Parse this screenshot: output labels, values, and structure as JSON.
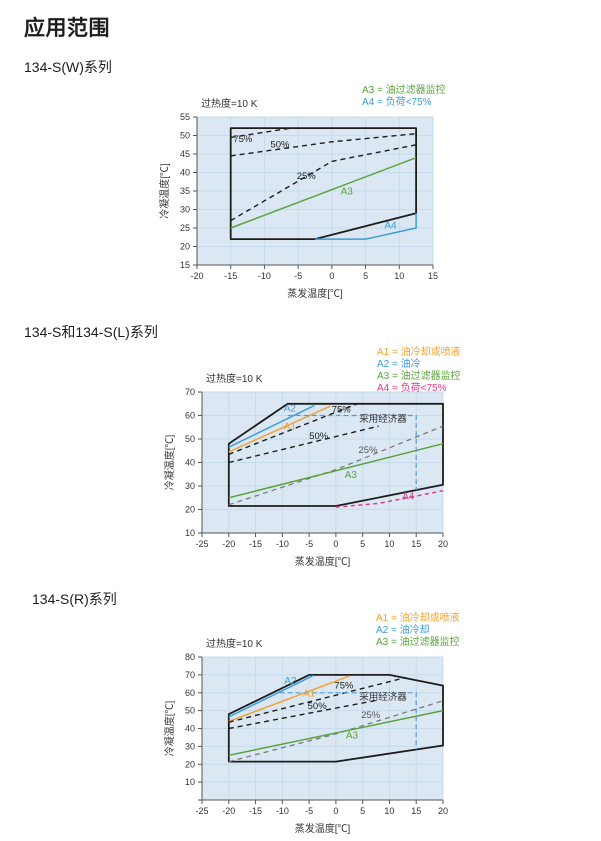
{
  "page": {
    "title": "应用范围",
    "sections": [
      {
        "heading": "134-S(W)系列"
      },
      {
        "heading": "134-S和134-S(L)系列"
      },
      {
        "heading": "134-S(R)系列"
      }
    ]
  },
  "colors": {
    "plot_bg": "#dbe8f4",
    "grid": "#c6dbec",
    "axis": "#555555",
    "text": "#333333",
    "black": "#1d1d1b",
    "green": "#5aa33c",
    "blue": "#3d9dd9",
    "orange": "#f2a233",
    "magenta": "#e6398b",
    "gray": "#7a7a7a",
    "econ_blue": "#5b9bd5"
  },
  "chart_data": [
    {
      "type": "line",
      "title": "134-S(W)系列 应用范围",
      "note": "过热度=10 K",
      "xlabel": "蒸发温度[℃]",
      "ylabel": "冷凝温度[℃]",
      "xlim": [
        -20,
        15
      ],
      "ylim": [
        15,
        55
      ],
      "xticks": [
        -20,
        -15,
        -10,
        -5,
        0,
        5,
        10,
        15
      ],
      "yticks": [
        15,
        20,
        25,
        30,
        35,
        40,
        45,
        50,
        55
      ],
      "grid": true,
      "legend_position": "top-right",
      "legend": [
        {
          "label": "A3 = 油过滤器监控",
          "color": "#5aa33c"
        },
        {
          "label": "A4 = 负荷<75%",
          "color": "#3d9dd9"
        }
      ],
      "series": [
        {
          "name": "envelope",
          "color": "#1d1d1b",
          "width": 1.8,
          "close": true,
          "points": [
            [
              -15,
              22
            ],
            [
              -15,
              52
            ],
            [
              12.5,
              52
            ],
            [
              12.5,
              29
            ],
            [
              -2.5,
              22
            ]
          ]
        },
        {
          "name": "load-75",
          "color": "#1d1d1b",
          "width": 1.4,
          "dash": "5,4",
          "points": [
            [
              -15,
              49.5
            ],
            [
              -6,
              52
            ]
          ]
        },
        {
          "name": "load-50",
          "color": "#1d1d1b",
          "width": 1.4,
          "dash": "5,4",
          "points": [
            [
              -15,
              44.5
            ],
            [
              0,
              48.3
            ],
            [
              12.5,
              50.5
            ]
          ]
        },
        {
          "name": "load-25",
          "color": "#1d1d1b",
          "width": 1.4,
          "dash": "5,4",
          "points": [
            [
              -15,
              27
            ],
            [
              0,
              43
            ],
            [
              12.5,
              47.5
            ]
          ]
        },
        {
          "name": "A3",
          "color": "#5aa33c",
          "width": 1.5,
          "points": [
            [
              -15,
              25
            ],
            [
              12.5,
              44
            ]
          ]
        },
        {
          "name": "A4",
          "color": "#3d9dd9",
          "width": 1.5,
          "points": [
            [
              -2.5,
              22
            ],
            [
              5,
              22
            ],
            [
              12.5,
              25
            ],
            [
              12.5,
              29
            ]
          ]
        }
      ],
      "labels": [
        {
          "text": "75%",
          "x": -13.2,
          "y": 48.2,
          "color": "#1d1d1b",
          "size": 9.5
        },
        {
          "text": "50%",
          "x": -7.7,
          "y": 46.8,
          "color": "#1d1d1b",
          "size": 9.5
        },
        {
          "text": "25%",
          "x": -3.8,
          "y": 38.2,
          "color": "#1d1d1b",
          "size": 9.5
        },
        {
          "text": "A3",
          "x": 2.2,
          "y": 34,
          "color": "#5aa33c",
          "size": 10
        },
        {
          "text": "A4",
          "x": 8.7,
          "y": 24.8,
          "color": "#3d9dd9",
          "size": 10
        }
      ]
    },
    {
      "type": "line",
      "title": "134-S和134-S(L)系列 应用范围",
      "note": "过热度=10 K",
      "xlabel": "蒸发温度[℃]",
      "ylabel": "冷凝温度[℃]",
      "xlim": [
        -25,
        20
      ],
      "ylim": [
        10,
        70
      ],
      "xticks": [
        -25,
        -20,
        -15,
        -10,
        -5,
        0,
        5,
        10,
        15,
        20
      ],
      "yticks": [
        10,
        20,
        30,
        40,
        50,
        60,
        70
      ],
      "grid": true,
      "legend_position": "top-right",
      "legend": [
        {
          "label": "A1 = 油冷却或喷液",
          "color": "#f2a233"
        },
        {
          "label": "A2 = 油冷",
          "color": "#3d9dd9"
        },
        {
          "label": "A3 = 油过滤器监控",
          "color": "#5aa33c"
        },
        {
          "label": "A4 = 负荷<75%",
          "color": "#e6398b"
        }
      ],
      "series": [
        {
          "name": "envelope",
          "color": "#1d1d1b",
          "width": 1.8,
          "close": true,
          "points": [
            [
              -20,
              21.5
            ],
            [
              -20,
              48
            ],
            [
              -9,
              65
            ],
            [
              20,
              65
            ],
            [
              20,
              30.5
            ],
            [
              0,
              21.5
            ]
          ]
        },
        {
          "name": "A2",
          "color": "#3d9dd9",
          "width": 1.5,
          "points": [
            [
              -20,
              46.5
            ],
            [
              -4,
              64.3
            ]
          ]
        },
        {
          "name": "A1",
          "color": "#f2a233",
          "width": 1.5,
          "points": [
            [
              -20,
              44.5
            ],
            [
              -1,
              64
            ]
          ]
        },
        {
          "name": "load-75",
          "color": "#1d1d1b",
          "width": 1.4,
          "dash": "5,4",
          "points": [
            [
              -20,
              43.5
            ],
            [
              4,
              65
            ]
          ]
        },
        {
          "name": "load-50",
          "color": "#1d1d1b",
          "width": 1.4,
          "dash": "5,4",
          "points": [
            [
              -20,
              40
            ],
            [
              8,
              55.5
            ]
          ]
        },
        {
          "name": "load-25",
          "color": "#7a7a7a",
          "width": 1.3,
          "dash": "5,4",
          "points": [
            [
              -20,
              22
            ],
            [
              0,
              37
            ],
            [
              20,
              55.5
            ]
          ]
        },
        {
          "name": "A3",
          "color": "#5aa33c",
          "width": 1.5,
          "points": [
            [
              -20,
              25
            ],
            [
              20,
              48
            ]
          ]
        },
        {
          "name": "A4",
          "color": "#e6398b",
          "width": 1.5,
          "dash": "4,3.5",
          "points": [
            [
              0,
              21
            ],
            [
              8,
              22.6
            ],
            [
              20,
              28
            ]
          ]
        },
        {
          "name": "economiser-limit",
          "color": "#5b9bd5",
          "width": 1.2,
          "dash": "5,3",
          "points": [
            [
              -9,
              60
            ],
            [
              15,
              60
            ],
            [
              15,
              28.3
            ]
          ]
        }
      ],
      "labels": [
        {
          "text": "A2",
          "x": -8.6,
          "y": 61.8,
          "color": "#3d9dd9",
          "size": 10
        },
        {
          "text": "A1",
          "x": -8.6,
          "y": 54,
          "color": "#f2a233",
          "size": 10
        },
        {
          "text": "75%",
          "x": 1,
          "y": 61.3,
          "color": "#1d1d1b",
          "size": 9.5
        },
        {
          "text": "50%",
          "x": -3.2,
          "y": 50,
          "color": "#1d1d1b",
          "size": 9.5
        },
        {
          "text": "25%",
          "x": 6,
          "y": 44,
          "color": "#555555",
          "size": 9.5
        },
        {
          "text": "采用经济器",
          "x": 8.8,
          "y": 57.3,
          "color": "#333333",
          "size": 9.5
        },
        {
          "text": "A3",
          "x": 2.8,
          "y": 33.5,
          "color": "#5aa33c",
          "size": 10
        },
        {
          "text": "A4",
          "x": 13.5,
          "y": 24.2,
          "color": "#e6398b",
          "size": 10
        }
      ]
    },
    {
      "type": "line",
      "title": "134-S(R)系列 应用范围",
      "note": "过热度=10 K",
      "xlabel": "蒸发温度[℃]",
      "ylabel": "冷凝温度[℃]",
      "xlim": [
        -25,
        20
      ],
      "ylim": [
        0,
        80
      ],
      "xticks": [
        -25,
        -20,
        -15,
        -10,
        -5,
        0,
        5,
        10,
        15,
        20
      ],
      "yticks": [
        0,
        10,
        20,
        30,
        40,
        50,
        60,
        70,
        80
      ],
      "ytick_labels": [
        "",
        "10",
        "20",
        "30",
        "40",
        "50",
        "60",
        "70",
        "80"
      ],
      "grid": true,
      "legend_position": "top-right",
      "legend": [
        {
          "label": "A1 = 油冷却或喷液",
          "color": "#f2a233"
        },
        {
          "label": "A2 = 油冷却",
          "color": "#3d9dd9"
        },
        {
          "label": "A3 = 油过滤器监控",
          "color": "#5aa33c"
        }
      ],
      "series": [
        {
          "name": "envelope",
          "color": "#1d1d1b",
          "width": 1.8,
          "close": true,
          "points": [
            [
              -20,
              21.5
            ],
            [
              -20,
              48
            ],
            [
              -5,
              70
            ],
            [
              10,
              70
            ],
            [
              20,
              64
            ],
            [
              20,
              30.5
            ],
            [
              0,
              21.5
            ]
          ]
        },
        {
          "name": "A2",
          "color": "#3d9dd9",
          "width": 1.5,
          "points": [
            [
              -20,
              46.5
            ],
            [
              -4.2,
              69.7
            ]
          ]
        },
        {
          "name": "A1",
          "color": "#f2a233",
          "width": 1.5,
          "points": [
            [
              -20,
              44
            ],
            [
              2.5,
              69.3
            ]
          ]
        },
        {
          "name": "load-75",
          "color": "#1d1d1b",
          "width": 1.4,
          "dash": "5,4",
          "points": [
            [
              -20,
              43.5
            ],
            [
              13,
              68.5
            ]
          ]
        },
        {
          "name": "load-50",
          "color": "#1d1d1b",
          "width": 1.4,
          "dash": "5,4",
          "points": [
            [
              -20,
              40
            ],
            [
              8,
              56
            ]
          ]
        },
        {
          "name": "load-25",
          "color": "#7a7a7a",
          "width": 1.3,
          "dash": "5,4",
          "points": [
            [
              -20,
              21.5
            ],
            [
              0,
              37
            ],
            [
              20,
              55.5
            ]
          ]
        },
        {
          "name": "A3",
          "color": "#5aa33c",
          "width": 1.5,
          "points": [
            [
              -20,
              25
            ],
            [
              20,
              50
            ]
          ]
        },
        {
          "name": "economiser-limit",
          "color": "#5b9bd5",
          "width": 1.2,
          "dash": "5,3",
          "points": [
            [
              -10.5,
              60
            ],
            [
              15,
              60
            ],
            [
              15,
              28.3
            ]
          ]
        }
      ],
      "labels": [
        {
          "text": "A2",
          "x": -8.5,
          "y": 64.8,
          "color": "#3d9dd9",
          "size": 10
        },
        {
          "text": "A1",
          "x": -5,
          "y": 58,
          "color": "#f2a233",
          "size": 10
        },
        {
          "text": "75%",
          "x": 1.5,
          "y": 62.3,
          "color": "#1d1d1b",
          "size": 9.5
        },
        {
          "text": "50%",
          "x": -3.5,
          "y": 51,
          "color": "#1d1d1b",
          "size": 9.5
        },
        {
          "text": "25%",
          "x": 6.5,
          "y": 45.8,
          "color": "#555555",
          "size": 9.5
        },
        {
          "text": "采用经济器",
          "x": 8.8,
          "y": 56,
          "color": "#333333",
          "size": 9.5
        },
        {
          "text": "A3",
          "x": 3,
          "y": 34.5,
          "color": "#5aa33c",
          "size": 10
        }
      ]
    }
  ]
}
